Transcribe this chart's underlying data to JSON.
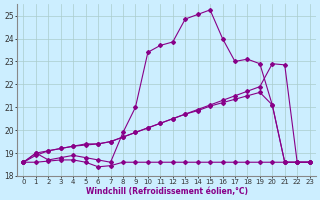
{
  "xlabel": "Windchill (Refroidissement éolien,°C)",
  "bg_color": "#cceeff",
  "line_color": "#880088",
  "grid_color": "#aacccc",
  "xlim": [
    -0.5,
    23.5
  ],
  "ylim": [
    18,
    25.5
  ],
  "yticks": [
    18,
    19,
    20,
    21,
    22,
    23,
    24,
    25
  ],
  "xticks": [
    0,
    1,
    2,
    3,
    4,
    5,
    6,
    7,
    8,
    9,
    10,
    11,
    12,
    13,
    14,
    15,
    16,
    17,
    18,
    19,
    20,
    21,
    22,
    23
  ],
  "line1_x": [
    0,
    1,
    2,
    3,
    4,
    5,
    6,
    7,
    8,
    9,
    10,
    11,
    12,
    13,
    14,
    15,
    16,
    17,
    18,
    19,
    20,
    21,
    22,
    23
  ],
  "line1_y": [
    18.6,
    18.6,
    18.65,
    18.7,
    18.7,
    18.6,
    18.4,
    18.45,
    18.6,
    18.6,
    18.6,
    18.6,
    18.6,
    18.6,
    18.6,
    18.6,
    18.6,
    18.6,
    18.6,
    18.6,
    18.6,
    18.6,
    18.6,
    18.6
  ],
  "line2_x": [
    0,
    1,
    2,
    3,
    4,
    5,
    6,
    7,
    8,
    9,
    10,
    11,
    12,
    13,
    14,
    15,
    16,
    17,
    18,
    19,
    20,
    21,
    22,
    23
  ],
  "line2_y": [
    18.6,
    19.0,
    18.7,
    18.8,
    18.9,
    18.8,
    18.7,
    18.6,
    19.9,
    21.0,
    23.4,
    23.7,
    23.85,
    24.85,
    25.05,
    25.25,
    24.0,
    23.0,
    23.1,
    22.9,
    21.1,
    18.6,
    18.6,
    18.6
  ],
  "line3_x": [
    0,
    1,
    2,
    3,
    4,
    5,
    6,
    7,
    8,
    9,
    10,
    11,
    12,
    13,
    14,
    15,
    16,
    17,
    18,
    19,
    20,
    21,
    22,
    23
  ],
  "line3_y": [
    18.6,
    18.9,
    19.1,
    19.2,
    19.3,
    19.35,
    19.4,
    19.5,
    19.7,
    19.9,
    20.1,
    20.3,
    20.5,
    20.7,
    20.85,
    21.05,
    21.2,
    21.35,
    21.5,
    21.65,
    21.1,
    18.6,
    18.6,
    18.6
  ],
  "line4_x": [
    0,
    1,
    2,
    3,
    4,
    5,
    6,
    7,
    8,
    9,
    10,
    11,
    12,
    13,
    14,
    15,
    16,
    17,
    18,
    19,
    20,
    21,
    22,
    23
  ],
  "line4_y": [
    18.6,
    19.0,
    19.1,
    19.2,
    19.3,
    19.4,
    19.4,
    19.5,
    19.7,
    19.9,
    20.1,
    20.3,
    20.5,
    20.7,
    20.9,
    21.1,
    21.3,
    21.5,
    21.7,
    21.9,
    22.9,
    22.85,
    18.6,
    18.6
  ],
  "marker": "D",
  "markersize": 2.0,
  "linewidth": 0.8
}
